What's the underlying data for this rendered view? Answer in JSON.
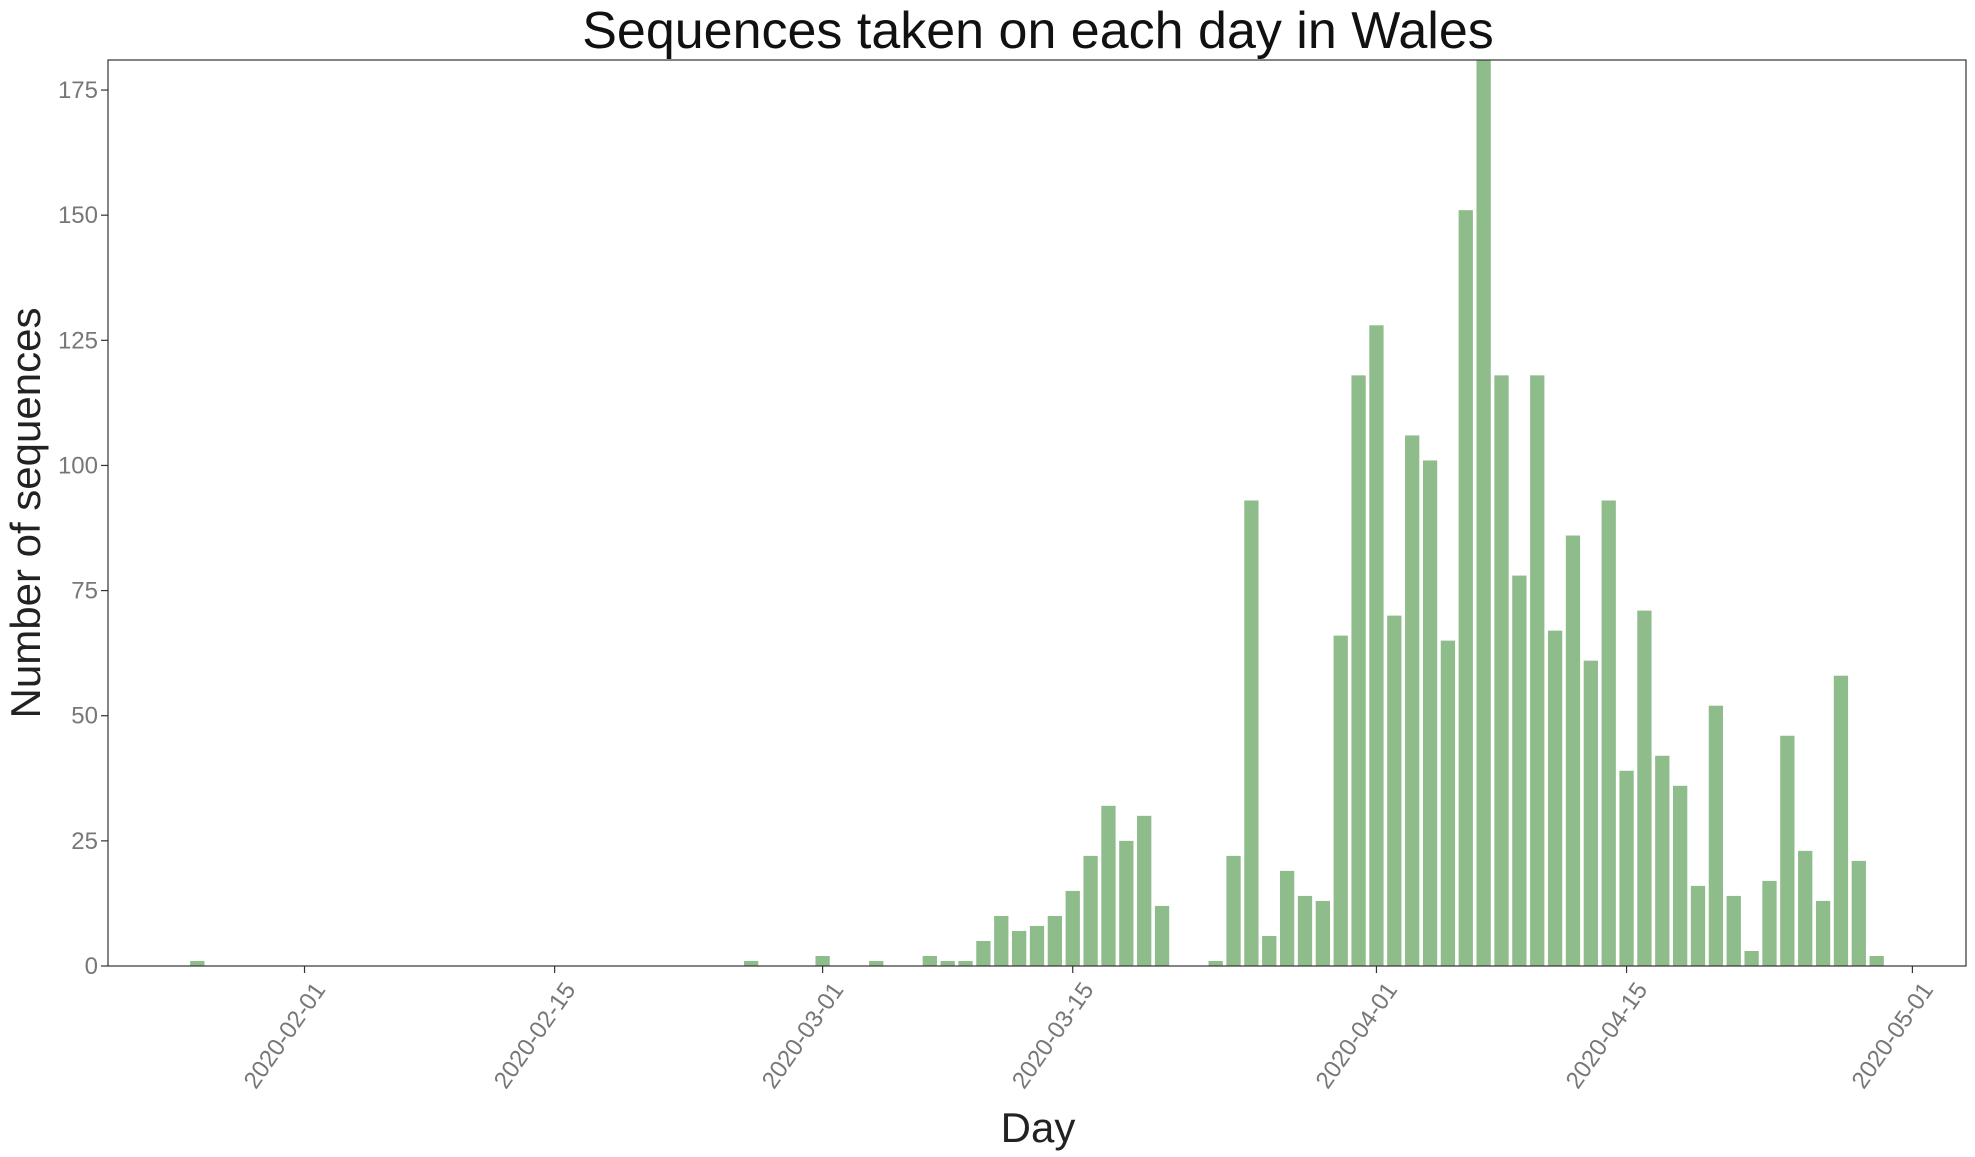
{
  "chart_data": {
    "type": "bar",
    "title": "Sequences taken on each day in Wales",
    "xlabel": "Day",
    "ylabel": "Number of sequences",
    "bar_color": "#8fbc8b",
    "x_range": [
      "2020-01-21",
      "2020-05-04"
    ],
    "ylim": [
      0,
      181
    ],
    "y_ticks": [
      0,
      25,
      50,
      75,
      100,
      125,
      150,
      175
    ],
    "x_ticks": [
      "2020-02-01",
      "2020-02-15",
      "2020-03-01",
      "2020-03-15",
      "2020-04-01",
      "2020-04-15",
      "2020-05-01"
    ],
    "grid": false,
    "legend": "none",
    "dates": [
      "2020-01-26",
      "2020-02-26",
      "2020-03-01",
      "2020-03-04",
      "2020-03-07",
      "2020-03-08",
      "2020-03-09",
      "2020-03-10",
      "2020-03-11",
      "2020-03-12",
      "2020-03-13",
      "2020-03-14",
      "2020-03-15",
      "2020-03-16",
      "2020-03-17",
      "2020-03-18",
      "2020-03-19",
      "2020-03-20",
      "2020-03-23",
      "2020-03-24",
      "2020-03-25",
      "2020-03-26",
      "2020-03-27",
      "2020-03-28",
      "2020-03-29",
      "2020-03-30",
      "2020-03-31",
      "2020-04-01",
      "2020-04-02",
      "2020-04-03",
      "2020-04-04",
      "2020-04-05",
      "2020-04-06",
      "2020-04-07",
      "2020-04-08",
      "2020-04-09",
      "2020-04-10",
      "2020-04-11",
      "2020-04-12",
      "2020-04-13",
      "2020-04-14",
      "2020-04-15",
      "2020-04-16",
      "2020-04-17",
      "2020-04-18",
      "2020-04-19",
      "2020-04-20",
      "2020-04-21",
      "2020-04-22",
      "2020-04-23",
      "2020-04-24",
      "2020-04-25",
      "2020-04-26",
      "2020-04-27",
      "2020-04-28",
      "2020-04-29"
    ],
    "values": [
      1,
      1,
      2,
      1,
      2,
      1,
      1,
      5,
      10,
      7,
      8,
      10,
      15,
      22,
      32,
      25,
      30,
      12,
      1,
      22,
      93,
      6,
      19,
      14,
      13,
      66,
      118,
      128,
      70,
      106,
      101,
      65,
      151,
      181,
      118,
      78,
      118,
      67,
      86,
      61,
      93,
      39,
      71,
      42,
      36,
      16,
      52,
      14,
      3,
      17,
      46,
      23,
      13,
      58,
      21,
      2
    ]
  }
}
